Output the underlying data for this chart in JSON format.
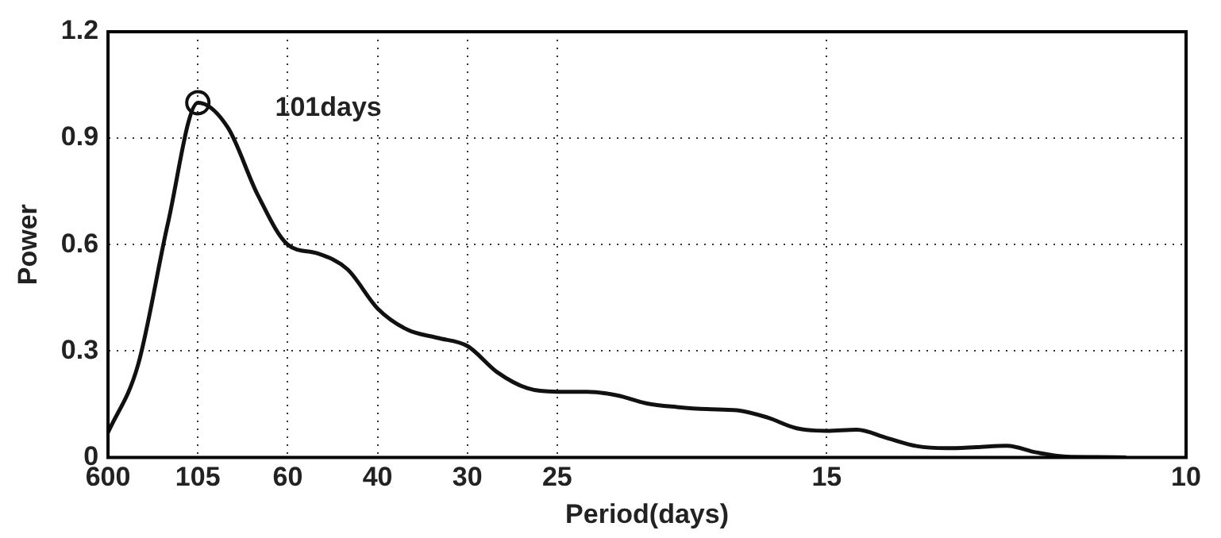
{
  "chart_data": {
    "type": "line",
    "xlabel": "Period(days)",
    "ylabel": "Power",
    "categories": [
      "600",
      null,
      null,
      "105",
      null,
      null,
      "60",
      null,
      null,
      "40",
      null,
      null,
      "30",
      null,
      null,
      "25",
      null,
      null,
      null,
      null,
      null,
      null,
      null,
      null,
      "15",
      null,
      null,
      null,
      null,
      null,
      null,
      null,
      null,
      null,
      null,
      null,
      "10"
    ],
    "series": [
      {
        "type": "line",
        "color": "#111111",
        "marker": "none",
        "values": [
          0.07,
          0.26,
          0.66,
          1.0,
          0.93,
          0.74,
          0.6,
          0.575,
          0.53,
          0.42,
          0.36,
          0.337,
          0.314,
          0.24,
          0.195,
          0.185,
          0.185,
          0.175,
          0.152,
          0.142,
          0.136,
          0.133,
          0.113,
          0.082,
          0.075,
          0.078,
          0.055,
          0.032,
          0.026,
          0.029,
          0.033,
          0.014,
          0.002,
          0.001,
          0,
          null,
          null
        ]
      },
      {
        "type": "scatter",
        "color": "#111111",
        "marker": "circle",
        "x": [
          "105"
        ],
        "values": [
          1.0
        ]
      }
    ],
    "annotations": [
      "101days"
    ],
    "ylim": [
      0,
      1.2
    ],
    "yticks": [
      0,
      0.3,
      0.6,
      0.9,
      1.2
    ],
    "grid": true,
    "line_style": "solid",
    "legend": false
  }
}
